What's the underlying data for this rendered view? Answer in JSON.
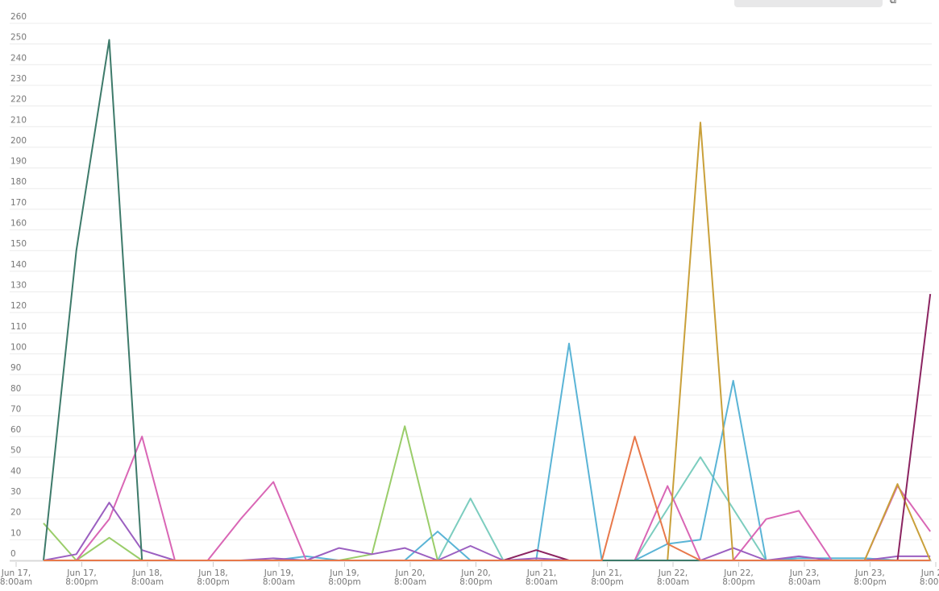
{
  "toolbar": {
    "label": "",
    "search_placeholder": "",
    "icon": "external-link-icon"
  },
  "chart_data": {
    "type": "line",
    "title": "",
    "xlabel": "",
    "ylabel": "",
    "ylim": [
      0,
      260
    ],
    "yticks": [
      0,
      10,
      20,
      30,
      40,
      50,
      60,
      70,
      80,
      90,
      100,
      110,
      120,
      130,
      140,
      150,
      160,
      170,
      180,
      190,
      200,
      210,
      220,
      230,
      240,
      250,
      260
    ],
    "grid": true,
    "xtick_labels": [
      [
        "Jun 17,",
        "8:00am"
      ],
      [
        "Jun 17,",
        "8:00pm"
      ],
      [
        "Jun 18,",
        "8:00am"
      ],
      [
        "Jun 18,",
        "8:00pm"
      ],
      [
        "Jun 19,",
        "8:00am"
      ],
      [
        "Jun 19,",
        "8:00pm"
      ],
      [
        "Jun 20,",
        "8:00am"
      ],
      [
        "Jun 20,",
        "8:00pm"
      ],
      [
        "Jun 21,",
        "8:00am"
      ],
      [
        "Jun 21,",
        "8:00pm"
      ],
      [
        "Jun 22,",
        "8:00am"
      ],
      [
        "Jun 22,",
        "8:00pm"
      ],
      [
        "Jun 23,",
        "8:00am"
      ],
      [
        "Jun 23,",
        "8:00pm"
      ],
      [
        "Jun 24,",
        "8:00am"
      ]
    ],
    "x": [
      "Jun 17 13:00",
      "Jun 17 19:00",
      "Jun 18 01:00",
      "Jun 18 07:00",
      "Jun 18 13:00",
      "Jun 18 19:00",
      "Jun 19 01:00",
      "Jun 19 07:00",
      "Jun 19 13:00",
      "Jun 19 19:00",
      "Jun 20 01:00",
      "Jun 20 07:00",
      "Jun 20 13:00",
      "Jun 20 19:00",
      "Jun 21 01:00",
      "Jun 21 07:00",
      "Jun 21 13:00",
      "Jun 21 19:00",
      "Jun 22 01:00",
      "Jun 22 07:00",
      "Jun 22 13:00",
      "Jun 22 19:00",
      "Jun 23 01:00",
      "Jun 23 07:00",
      "Jun 23 13:00",
      "Jun 23 19:00",
      "Jun 24 01:00",
      "Jun 24 07:00"
    ],
    "series": [
      {
        "color": "#7ccdbf",
        "values": [
          0,
          0,
          0,
          0,
          0,
          0,
          0,
          0,
          0,
          0,
          0,
          0,
          0,
          30,
          0,
          0,
          0,
          0,
          0,
          25,
          50,
          25,
          0,
          1,
          1,
          1,
          0,
          0
        ]
      },
      {
        "color": "#5ab4d6",
        "values": [
          0,
          0,
          0,
          0,
          0,
          0,
          0,
          0,
          2,
          0,
          0,
          0,
          14,
          0,
          0,
          0,
          105,
          0,
          0,
          8,
          10,
          87,
          0,
          1,
          1,
          1,
          0,
          0
        ]
      },
      {
        "color": "#9acd6a",
        "values": [
          18,
          0,
          11,
          0,
          0,
          0,
          0,
          0,
          0,
          0,
          3,
          65,
          0,
          0,
          0,
          0,
          0,
          0,
          0,
          0,
          0,
          0,
          0,
          0,
          0,
          0,
          0,
          0
        ]
      },
      {
        "color": "#d966b5",
        "values": [
          0,
          0,
          20,
          60,
          0,
          0,
          20,
          38,
          0,
          0,
          0,
          0,
          0,
          0,
          0,
          0,
          0,
          0,
          0,
          36,
          0,
          0,
          20,
          24,
          0,
          0,
          36,
          14
        ]
      },
      {
        "color": "#9b5fc0",
        "values": [
          0,
          3,
          28,
          5,
          0,
          0,
          0,
          1,
          0,
          6,
          3,
          6,
          0,
          7,
          0,
          1,
          0,
          0,
          0,
          0,
          0,
          6,
          0,
          2,
          0,
          0,
          2,
          2
        ]
      },
      {
        "color": "#c9a03a",
        "values": [
          0,
          0,
          0,
          0,
          0,
          0,
          0,
          0,
          0,
          0,
          0,
          0,
          0,
          0,
          0,
          0,
          0,
          0,
          0,
          0,
          212,
          0,
          0,
          0,
          0,
          0,
          37,
          0
        ]
      },
      {
        "color": "#8b2461",
        "values": [
          0,
          0,
          0,
          0,
          0,
          0,
          0,
          0,
          0,
          0,
          0,
          0,
          0,
          0,
          0,
          5,
          0,
          0,
          0,
          0,
          0,
          0,
          0,
          0,
          0,
          0,
          0,
          129
        ]
      },
      {
        "color": "#3d7a6a",
        "values": [
          0,
          150,
          252,
          0,
          0,
          0,
          0,
          0,
          0,
          0,
          0,
          0,
          0,
          0,
          0,
          0,
          0,
          0,
          0,
          0,
          0,
          0,
          0,
          0,
          0,
          0,
          0,
          0
        ]
      },
      {
        "color": "#e8784a",
        "values": [
          0,
          0,
          0,
          0,
          0,
          0,
          0,
          0,
          0,
          0,
          0,
          0,
          0,
          0,
          0,
          0,
          0,
          0,
          60,
          8,
          0,
          0,
          0,
          0,
          0,
          0,
          0,
          0
        ]
      }
    ]
  }
}
